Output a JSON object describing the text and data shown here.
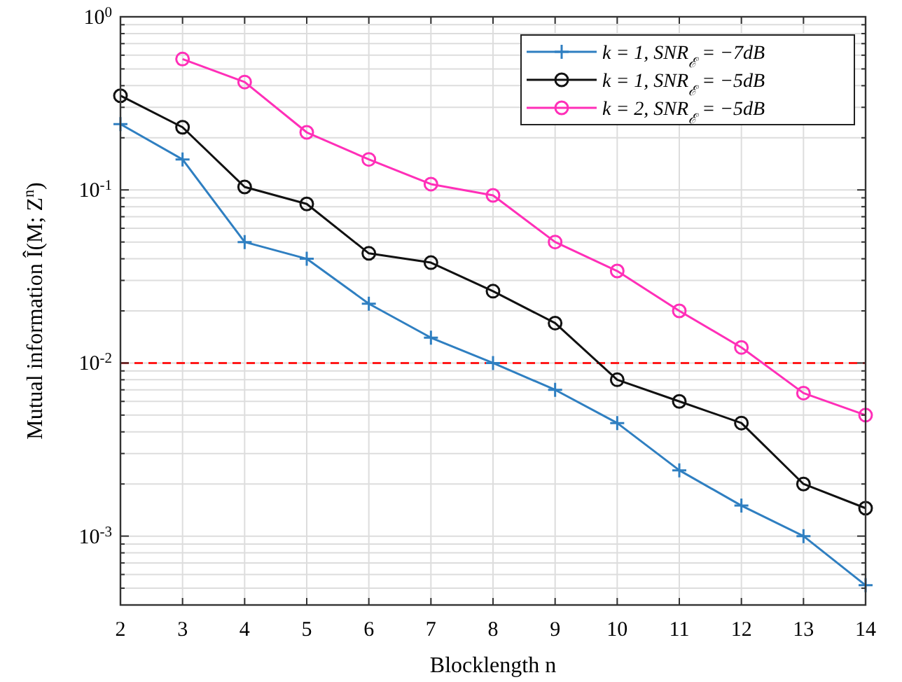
{
  "chart_data": {
    "type": "line",
    "xlabel": "Blocklength n",
    "ylabel": "Mutual information Î(M; Z$^{n}$)",
    "x": [
      2,
      3,
      4,
      5,
      6,
      7,
      8,
      9,
      10,
      11,
      12,
      13,
      14
    ],
    "xlim": [
      2,
      14
    ],
    "xticks": [
      2,
      3,
      4,
      5,
      6,
      7,
      8,
      9,
      10,
      11,
      12,
      13,
      14
    ],
    "ylim": [
      0.0004,
      1
    ],
    "yticks": [
      {
        "value": 0.001,
        "label": "10$^{-3}$"
      },
      {
        "value": 0.01,
        "label": "10$^{-2}$"
      },
      {
        "value": 0.1,
        "label": "10$^{-1}$"
      },
      {
        "value": 1,
        "label": "10$^{0}$"
      }
    ],
    "log": "y",
    "grid": true,
    "legend": "top right",
    "line_style": "solid",
    "series": [
      {
        "name": "k = 1, SNR$_{ℰ}$ = −7dB",
        "color": "#2f7fc1",
        "marker": "cross",
        "values": [
          0.24,
          0.15,
          0.05,
          0.04,
          0.022,
          0.014,
          0.01,
          0.007,
          0.0045,
          0.0024,
          0.0015,
          0.001,
          0.00052
        ]
      },
      {
        "name": "k = 1, SNR$_{ℰ}$ = −5dB",
        "color": "#111111",
        "marker": "circle",
        "values": [
          0.35,
          0.23,
          0.104,
          0.083,
          0.043,
          0.038,
          0.026,
          0.017,
          0.008,
          0.006,
          0.0045,
          0.002,
          0.00145
        ]
      },
      {
        "name": "k = 2, SNR$_{ℰ}$ = −5dB",
        "color": "#ff2fb8",
        "marker": "circle",
        "values": [
          null,
          0.57,
          0.42,
          0.215,
          0.15,
          0.108,
          0.093,
          0.05,
          0.034,
          0.02,
          0.0123,
          0.0067,
          0.005
        ]
      }
    ],
    "ref_lines": [
      {
        "axis": "y",
        "value": 0.01,
        "color": "#ff1a1a",
        "line_style": "dashed"
      }
    ]
  }
}
